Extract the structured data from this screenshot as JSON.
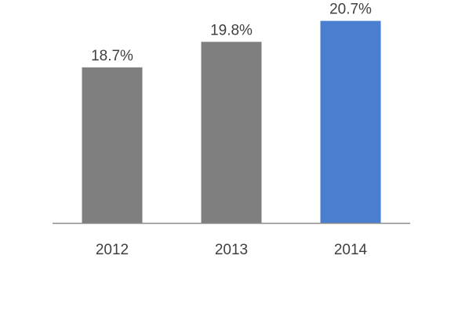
{
  "chart_data": {
    "type": "bar",
    "categories": [
      "2012",
      "2013",
      "2014"
    ],
    "values": [
      18.7,
      19.8,
      20.7
    ],
    "value_labels": [
      "18.7%",
      "19.8%",
      "20.7%"
    ],
    "unit": "%",
    "ylim": [
      12.0,
      21.6
    ],
    "grid": false,
    "legend": "none",
    "colors": {
      "default_bar": "#7f7f7f",
      "highlight_bar": "#4a7fcf",
      "axis": "#8c8c8c",
      "text": "#404040"
    },
    "highlight_index": 2
  }
}
